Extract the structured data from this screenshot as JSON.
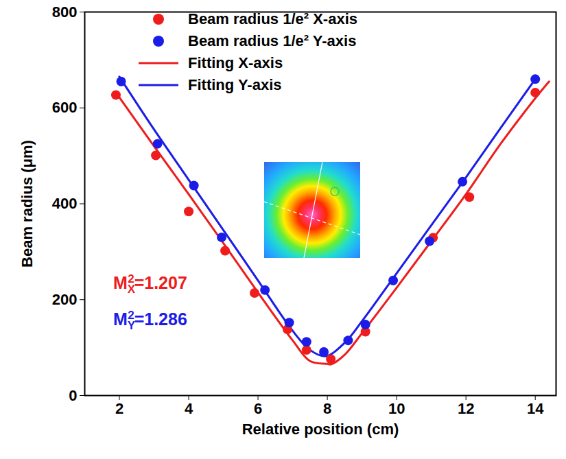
{
  "chart_data": {
    "type": "scatter",
    "x_label": "Relative position (cm)",
    "y_label": "Beam radius (μm)",
    "xlim": [
      1,
      14.6
    ],
    "xticks": [
      2,
      4,
      6,
      8,
      10,
      12,
      14
    ],
    "ylim": [
      0,
      800
    ],
    "yticks": [
      0,
      200,
      400,
      600,
      800
    ],
    "grid": false,
    "legend": "top",
    "series": [
      {
        "name": "Beam radius 1/e² X-axis",
        "type": "scatter",
        "marker": "circle",
        "color": "#ee1c1c",
        "x": [
          1.9,
          3.05,
          4.0,
          5.05,
          5.9,
          6.85,
          7.4,
          8.1,
          9.1,
          11.05,
          12.1,
          14.0
        ],
        "values": [
          627,
          501,
          384,
          302,
          214,
          138,
          95,
          76,
          133,
          329,
          414,
          632
        ]
      },
      {
        "name": "Beam radius 1/e² Y-axis",
        "type": "scatter",
        "marker": "circle",
        "color": "#1c1ce8",
        "x": [
          2.05,
          3.1,
          4.15,
          4.95,
          6.2,
          6.9,
          7.4,
          7.9,
          8.6,
          9.1,
          9.9,
          10.95,
          11.9,
          14.0
        ],
        "values": [
          655,
          525,
          438,
          330,
          220,
          152,
          112,
          91,
          115,
          148,
          240,
          322,
          446,
          660
        ]
      },
      {
        "name": "Fitting X-axis",
        "type": "line",
        "line_style": "solid",
        "color": "#ee1c1c",
        "x": [
          1.9,
          3,
          4,
          5,
          6,
          7,
          7.5,
          8,
          8.1,
          8.5,
          9,
          10,
          11,
          12,
          13,
          14,
          14.4
        ],
        "values": [
          632,
          520,
          420,
          318,
          215,
          115,
          72,
          66,
          65,
          85,
          130,
          225,
          322,
          420,
          525,
          620,
          655
        ]
      },
      {
        "name": "Fitting Y-axis",
        "type": "line",
        "line_style": "solid",
        "color": "#1c1ce8",
        "x": [
          2,
          3,
          4,
          5,
          6,
          7,
          7.5,
          7.95,
          8.5,
          9,
          10,
          11,
          12,
          13,
          14
        ],
        "values": [
          665,
          555,
          450,
          345,
          240,
          135,
          95,
          82,
          110,
          155,
          255,
          355,
          455,
          558,
          660
        ]
      }
    ],
    "annotations": [
      {
        "text": "M",
        "sub": "X",
        "sup": "2",
        "rest": "=1.207",
        "color": "#ee1c1c"
      },
      {
        "text": "M",
        "sub": "Y",
        "sup": "2",
        "rest": "=1.286",
        "color": "#1c1ce8"
      }
    ]
  }
}
